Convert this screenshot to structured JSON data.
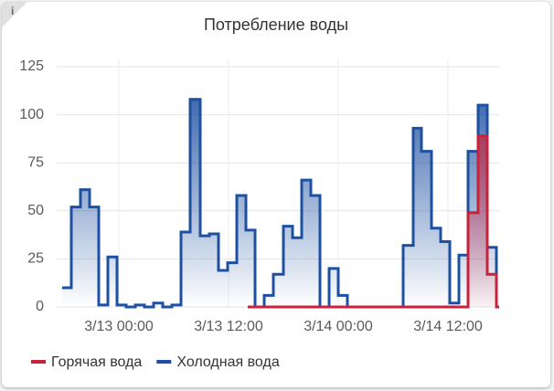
{
  "info_icon": "i",
  "chart_data": {
    "type": "step-line",
    "title": "Потребление воды",
    "xlim": [
      -6.8,
      41.6
    ],
    "xticks": [
      {
        "value": 0,
        "label": "3/13 00:00"
      },
      {
        "value": 12,
        "label": "3/13 12:00"
      },
      {
        "value": 24,
        "label": "3/14 00:00"
      },
      {
        "value": 36,
        "label": "3/14 12:00"
      }
    ],
    "ylim": [
      0,
      125
    ],
    "yticks": [
      0,
      25,
      50,
      75,
      100,
      125
    ],
    "grid": true,
    "legend": "bottom",
    "series": [
      {
        "name": "Холодная вода",
        "color": "#1e50a2",
        "x": [
          -6.2,
          -5.2,
          -4.2,
          -3.2,
          -2.2,
          -1.2,
          -0.2,
          0.8,
          1.8,
          2.8,
          3.8,
          4.8,
          5.8,
          6.8,
          7.8,
          8.9,
          9.9,
          10.9,
          11.9,
          12.9,
          13.9,
          14.9,
          15.9,
          16.9,
          18.0,
          19.0,
          20.0,
          21.0,
          22.0,
          23.0,
          24.0,
          25.0,
          31.1,
          32.2,
          33.1,
          34.2,
          35.2,
          36.2,
          37.2,
          38.2,
          39.3,
          40.3,
          41.3
        ],
        "values": [
          10,
          52,
          61,
          52,
          1,
          26,
          1,
          0,
          1,
          0,
          2,
          0,
          1,
          39,
          108,
          37,
          38,
          19,
          23,
          58,
          40,
          0,
          6,
          17,
          42,
          36,
          66,
          58,
          0,
          20,
          6,
          0,
          32,
          93,
          81,
          41,
          34,
          2,
          27,
          81,
          105,
          31,
          0
        ]
      },
      {
        "name": "Горячая вода",
        "color": "#c8213a",
        "x": [
          14.1,
          38.2,
          39.3,
          40.3,
          41.3
        ],
        "values": [
          0,
          49,
          89,
          17,
          0
        ]
      }
    ]
  }
}
